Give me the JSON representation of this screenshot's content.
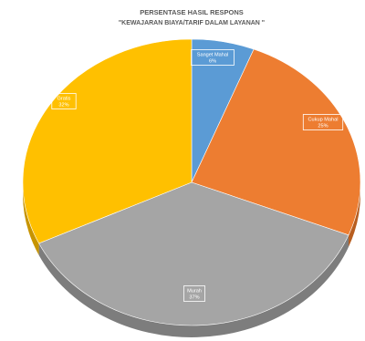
{
  "chart_data": {
    "type": "pie",
    "title_line1": "PERSENTASE HASIL RESPONS",
    "title_line2": "\"KEWAJARAN BIAYA/TARIF DALAM LAYANAN \"",
    "slices": [
      {
        "label": "Sanget Mahal",
        "value": 6,
        "display": "6%",
        "color": "#5b9bd5",
        "side": "#3f78ad"
      },
      {
        "label": "Cukup Mahal",
        "value": 25,
        "display": "25%",
        "color": "#ed7d31",
        "side": "#b85e20"
      },
      {
        "label": "Murah",
        "value": 37,
        "display": "37%",
        "color": "#a5a5a5",
        "side": "#7d7d7d"
      },
      {
        "label": "Gratis",
        "value": 32,
        "display": "32%",
        "color": "#ffc000",
        "side": "#c79400"
      }
    ]
  }
}
